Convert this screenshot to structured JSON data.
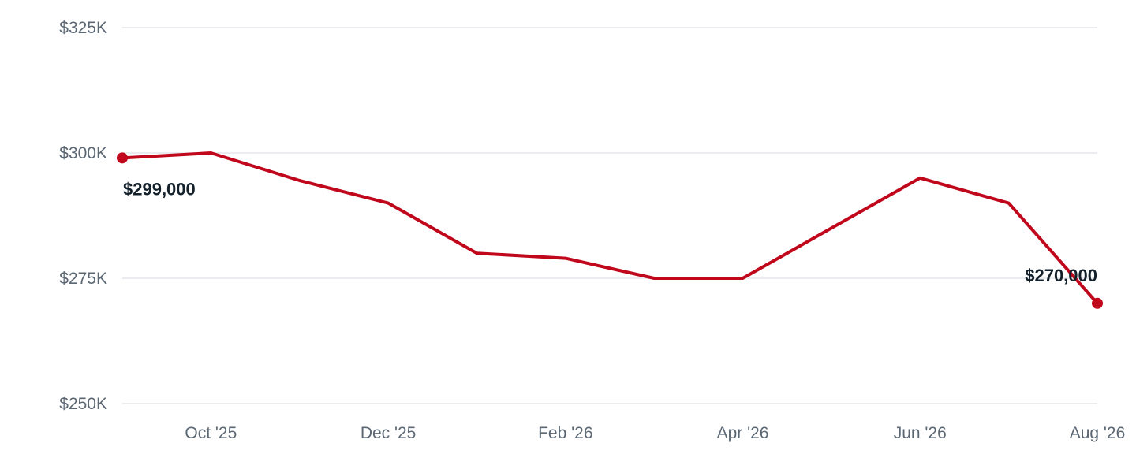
{
  "chart_data": {
    "type": "line",
    "title": "",
    "xlabel": "",
    "ylabel": "",
    "ylim": [
      250000,
      325000
    ],
    "y_ticks": [
      {
        "value": 250000,
        "label": "$250K"
      },
      {
        "value": 275000,
        "label": "$275K"
      },
      {
        "value": 300000,
        "label": "$300K"
      },
      {
        "value": 325000,
        "label": "$325K"
      }
    ],
    "x_ticks": [
      {
        "date": "2025-10",
        "label": "Oct '25"
      },
      {
        "date": "2025-12",
        "label": "Dec '25"
      },
      {
        "date": "2026-02",
        "label": "Feb '26"
      },
      {
        "date": "2026-04",
        "label": "Apr '26"
      },
      {
        "date": "2026-06",
        "label": "Jun '26"
      },
      {
        "date": "2026-08",
        "label": "Aug '26"
      }
    ],
    "grid": true,
    "legend": "none",
    "series": [
      {
        "color": "#c0071b",
        "points": [
          {
            "x": "2025-09",
            "y": 299000
          },
          {
            "x": "2025-10",
            "y": 300000
          },
          {
            "x": "2025-11",
            "y": 294500
          },
          {
            "x": "2025-12",
            "y": 290000
          },
          {
            "x": "2026-01",
            "y": 280000
          },
          {
            "x": "2026-02",
            "y": 279000
          },
          {
            "x": "2026-03",
            "y": 275000
          },
          {
            "x": "2026-04",
            "y": 275000
          },
          {
            "x": "2026-05",
            "y": 285000
          },
          {
            "x": "2026-06",
            "y": 295000
          },
          {
            "x": "2026-07",
            "y": 290000
          },
          {
            "x": "2026-08",
            "y": 270000
          }
        ]
      }
    ],
    "annotations": [
      {
        "x": "2025-09",
        "y": 299000,
        "label": "$299,000",
        "placement": "below-right"
      },
      {
        "x": "2026-08",
        "y": 270000,
        "label": "$270,000",
        "placement": "above-left"
      }
    ],
    "colors": {
      "grid": "#e3e6ea",
      "tick_text": "#5b6773",
      "label_text": "#14212b"
    }
  }
}
